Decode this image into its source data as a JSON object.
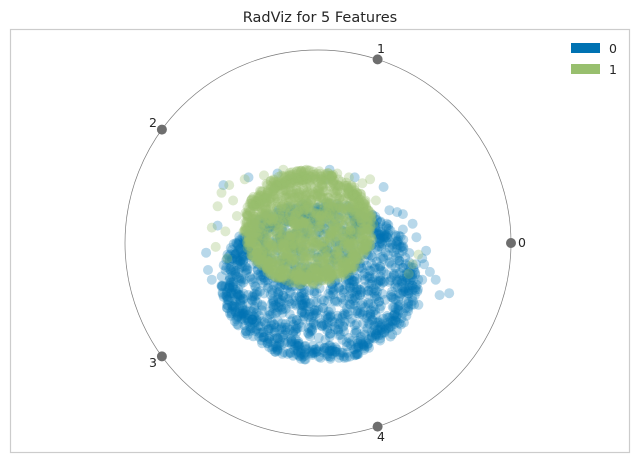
{
  "chart_data": {
    "type": "scatter",
    "title": "RadViz for 5 Features",
    "plot_background": "#ffffff",
    "frame_color": "#cccccc",
    "circle_color": "#7a7a7a",
    "anchor_color": "#6e6e6e",
    "anchors": [
      "0",
      "1",
      "2",
      "3",
      "4"
    ],
    "legend": {
      "placement": "top-right",
      "entries": [
        {
          "label": "0",
          "color": "#0072b2"
        },
        {
          "label": "1",
          "color": "#98bf6e"
        }
      ]
    },
    "series": [
      {
        "name": "0",
        "color": "#0072b2",
        "alpha": 0.28,
        "cloud": {
          "cx": 0.01,
          "cy": -0.2,
          "rx": 0.5,
          "ry": 0.4,
          "count": 1500
        },
        "points": [
          [
            -0.57,
            -0.14
          ],
          [
            -0.55,
            -0.19
          ],
          [
            -0.5,
            -0.22
          ],
          [
            -0.47,
            -0.25
          ],
          [
            -0.44,
            -0.33
          ],
          [
            -0.39,
            -0.34
          ],
          [
            -0.33,
            -0.38
          ],
          [
            -0.27,
            -0.42
          ],
          [
            -0.18,
            -0.48
          ],
          [
            -0.11,
            -0.4
          ],
          [
            -0.04,
            -0.46
          ],
          [
            0.05,
            -0.44
          ],
          [
            0.13,
            -0.43
          ],
          [
            0.22,
            -0.36
          ],
          [
            0.28,
            -0.4
          ],
          [
            0.32,
            -0.34
          ],
          [
            0.38,
            -0.28
          ],
          [
            0.42,
            -0.26
          ],
          [
            0.46,
            -0.29
          ],
          [
            0.49,
            -0.22
          ],
          [
            0.54,
            -0.19
          ],
          [
            0.55,
            -0.11
          ],
          [
            0.56,
            -0.04
          ],
          [
            0.51,
            0.03
          ],
          [
            0.44,
            0.07
          ],
          [
            0.41,
            0.16
          ],
          [
            0.37,
            0.17
          ],
          [
            0.44,
            0.15
          ],
          [
            -0.49,
            0.3
          ],
          [
            -0.21,
            0.36
          ],
          [
            0.04,
            0.33
          ],
          [
            0.06,
            0.38
          ],
          [
            0.63,
            -0.27
          ],
          [
            0.68,
            -0.26
          ],
          [
            0.61,
            -0.19
          ],
          [
            0.52,
            -0.32
          ],
          [
            0.42,
            -0.35
          ],
          [
            0.29,
            -0.45
          ],
          [
            -0.12,
            -0.52
          ],
          [
            -0.34,
            -0.44
          ],
          [
            -0.58,
            -0.05
          ],
          [
            -0.52,
            0.09
          ],
          [
            0.49,
            0.1
          ],
          [
            0.54,
            -0.08
          ],
          [
            0.58,
            -0.15
          ],
          [
            0.34,
            0.29
          ],
          [
            0.19,
            0.34
          ],
          [
            -0.36,
            0.34
          ]
        ]
      },
      {
        "name": "1",
        "color": "#98bf6e",
        "alpha": 0.32,
        "cloud": {
          "cx": -0.05,
          "cy": 0.08,
          "rx": 0.33,
          "ry": 0.29,
          "count": 1400
        },
        "points": [
          [
            -0.5,
            0.26
          ],
          [
            -0.46,
            0.3
          ],
          [
            -0.38,
            0.33
          ],
          [
            -0.28,
            0.35
          ],
          [
            -0.18,
            0.38
          ],
          [
            -0.06,
            0.38
          ],
          [
            0.06,
            0.33
          ],
          [
            0.16,
            0.34
          ],
          [
            0.23,
            0.31
          ],
          [
            -0.52,
            0.19
          ],
          [
            -0.55,
            0.08
          ],
          [
            -0.53,
            -0.02
          ],
          [
            -0.47,
            -0.08
          ],
          [
            0.49,
            -0.11
          ],
          [
            0.47,
            -0.16
          ],
          [
            0.52,
            -0.06
          ],
          [
            0.27,
            0.33
          ],
          [
            -0.42,
            0.14
          ],
          [
            -0.3,
            0.27
          ],
          [
            -0.14,
            0.31
          ],
          [
            -0.48,
            0.06
          ],
          [
            -0.44,
            0.22
          ],
          [
            0.1,
            0.36
          ],
          [
            0.3,
            0.22
          ]
        ]
      }
    ]
  }
}
